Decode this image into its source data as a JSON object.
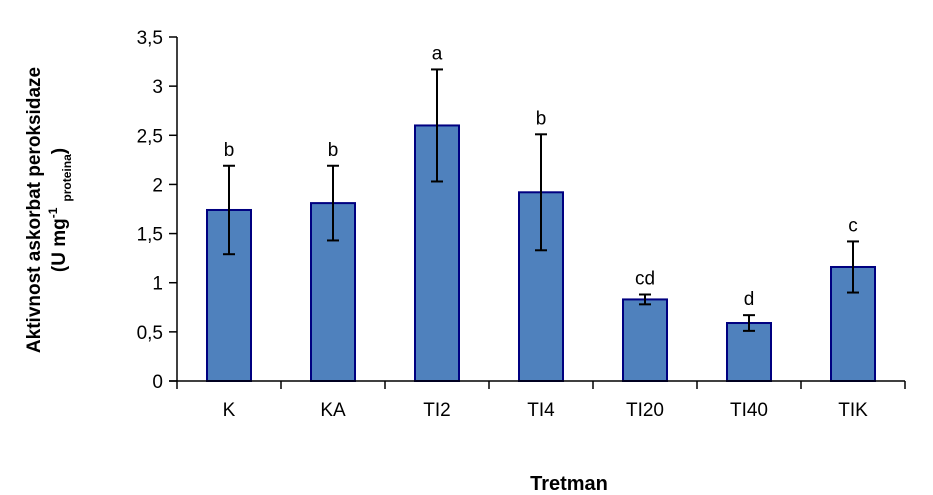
{
  "chart_data": {
    "type": "bar",
    "categories": [
      "K",
      "KA",
      "TI2",
      "TI4",
      "TI20",
      "TI40",
      "TIK"
    ],
    "values": [
      1.74,
      1.81,
      2.6,
      1.92,
      0.83,
      0.59,
      1.16
    ],
    "errors": [
      0.45,
      0.38,
      0.57,
      0.59,
      0.05,
      0.08,
      0.26
    ],
    "significance_labels": [
      "b",
      "b",
      "a",
      "b",
      "cd",
      "d",
      "c"
    ],
    "xlabel": "Tretman",
    "ylabel": {
      "line1": "Aktivnost askorbat peroksidaze",
      "line2_prefix": "(U mg",
      "line2_sup": "-1",
      "line2_sub": "proteina",
      "line2_suffix": ")"
    },
    "ylim": [
      0,
      3.5
    ],
    "yticks": [
      0,
      0.5,
      1,
      1.5,
      2,
      2.5,
      3,
      3.5
    ],
    "ytick_labels": [
      "0",
      "0,5",
      "1",
      "1,5",
      "2",
      "2,5",
      "3",
      "3,5"
    ],
    "grid": false,
    "legend": "none",
    "colors": {
      "bar_fill": "#4f81bd",
      "bar_stroke": "#000080",
      "axis": "#000000"
    }
  }
}
